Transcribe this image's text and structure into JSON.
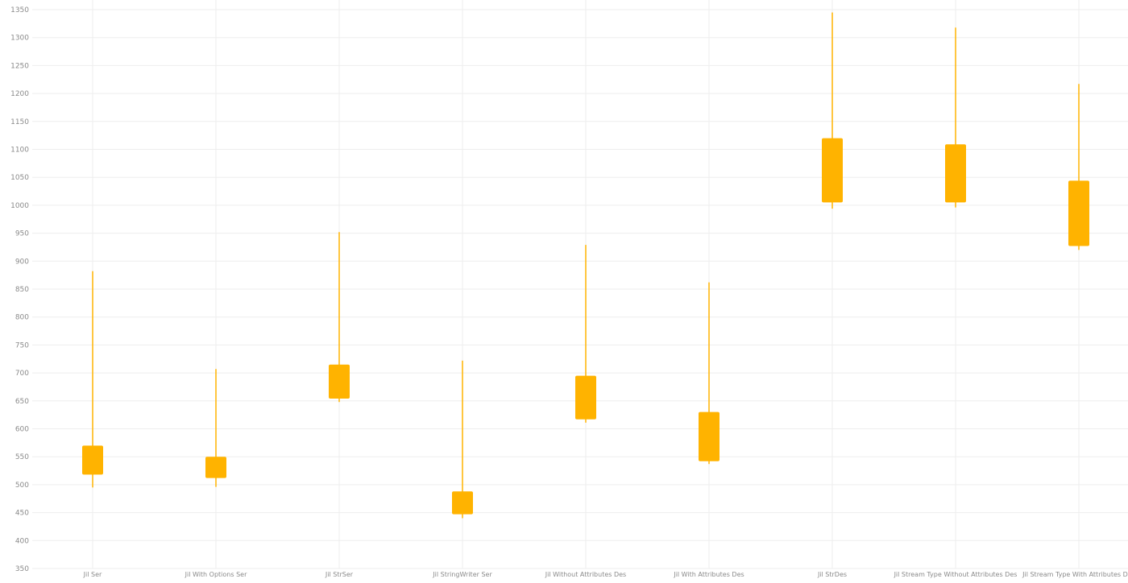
{
  "chart_data": {
    "type": "box",
    "title": "",
    "xlabel": "",
    "ylabel": "",
    "ylim": [
      350,
      1350
    ],
    "yticks": [
      350,
      400,
      450,
      500,
      550,
      600,
      650,
      700,
      750,
      800,
      850,
      900,
      950,
      1000,
      1050,
      1100,
      1150,
      1200,
      1250,
      1300,
      1350
    ],
    "grid": true,
    "legend": "none",
    "colors": {
      "box": "#FFB300",
      "grid": "#eeeeee",
      "axis_text": "#8a8a8a"
    },
    "categories": [
      "Jil Ser",
      "Jil With Options Ser",
      "Jil StrSer",
      "Jil StringWriter Ser",
      "Jil Without Attributes Des",
      "Jil With Attributes Des",
      "Jil StrDes",
      "Jil Stream Type Without Attributes Des",
      "Jil Stream Type With Attributes Des"
    ],
    "boxes": [
      {
        "min": 495,
        "q1": 518,
        "q3": 570,
        "max": 882
      },
      {
        "min": 496,
        "q1": 512,
        "q3": 550,
        "max": 707
      },
      {
        "min": 648,
        "q1": 654,
        "q3": 715,
        "max": 952
      },
      {
        "min": 440,
        "q1": 447,
        "q3": 488,
        "max": 722
      },
      {
        "min": 611,
        "q1": 617,
        "q3": 695,
        "max": 929
      },
      {
        "min": 537,
        "q1": 542,
        "q3": 630,
        "max": 862
      },
      {
        "min": 994,
        "q1": 1005,
        "q3": 1120,
        "max": 1345
      },
      {
        "min": 996,
        "q1": 1005,
        "q3": 1109,
        "max": 1318
      },
      {
        "min": 920,
        "q1": 927,
        "q3": 1044,
        "max": 1217
      }
    ]
  }
}
